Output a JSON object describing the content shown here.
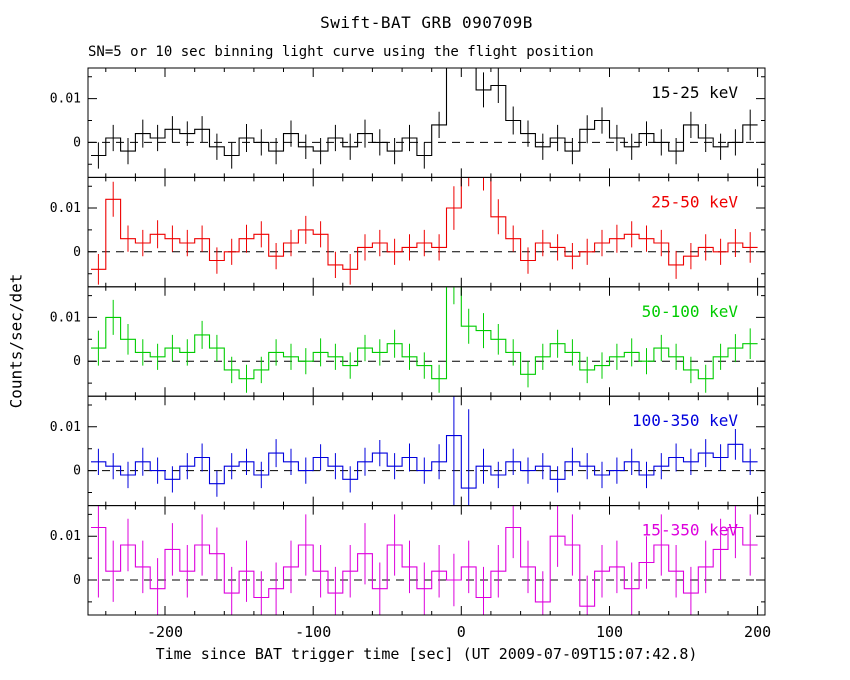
{
  "title": "Swift-BAT GRB 090709B",
  "subtitle": "SN=5 or 10 sec binning light curve using the flight position",
  "xlabel": "Time since BAT trigger time [sec] (UT 2009-07-09T15:07:42.8)",
  "ylabel": "Counts/sec/det",
  "chart_data": {
    "type": "line",
    "style": "step-histogram-with-error-bars",
    "grid": false,
    "xlim": [
      -252,
      205
    ],
    "ylim": [
      -0.008,
      0.017
    ],
    "bin_halfwidth": 5,
    "xticks": [
      {
        "v": -200,
        "label": "-200"
      },
      {
        "v": -100,
        "label": "-100"
      },
      {
        "v": 0,
        "label": "0"
      },
      {
        "v": 100,
        "label": "100"
      },
      {
        "v": 200,
        "label": "200"
      }
    ],
    "xtick_minor_step": 20,
    "yticks": [
      {
        "v": 0,
        "label": "0"
      },
      {
        "v": 0.01,
        "label": "0.01"
      }
    ],
    "ytick_minor": [
      -0.005,
      0.005,
      0.015
    ],
    "zero_line": {
      "value": 0,
      "style": "dashed",
      "color": "#000000"
    },
    "x": [
      -245,
      -235,
      -225,
      -215,
      -205,
      -195,
      -185,
      -175,
      -165,
      -155,
      -145,
      -135,
      -125,
      -115,
      -105,
      -95,
      -85,
      -75,
      -65,
      -55,
      -45,
      -35,
      -25,
      -15,
      -5,
      5,
      15,
      25,
      35,
      45,
      55,
      65,
      75,
      85,
      95,
      105,
      115,
      125,
      135,
      145,
      155,
      165,
      175,
      185,
      195
    ],
    "panels": [
      {
        "label": "15-25 keV",
        "color": "#000000",
        "y": [
          -0.003,
          0.001,
          -0.002,
          0.002,
          0.001,
          0.003,
          0.002,
          0.003,
          -0.001,
          -0.003,
          0.001,
          0.0,
          -0.002,
          0.002,
          -0.001,
          -0.002,
          0.001,
          -0.001,
          0.002,
          0.0,
          -0.002,
          0.001,
          -0.003,
          0.004,
          0.025,
          0.03,
          0.012,
          0.013,
          0.005,
          0.002,
          -0.001,
          0.001,
          -0.002,
          0.003,
          0.005,
          0.001,
          -0.001,
          0.002,
          0.0,
          -0.002,
          0.004,
          0.001,
          -0.001,
          0.0,
          0.004
        ],
        "yerr": [
          0.003,
          0.003,
          0.003,
          0.0032,
          0.003,
          0.003,
          0.0028,
          0.003,
          0.003,
          0.003,
          0.0032,
          0.003,
          0.003,
          0.003,
          0.0028,
          0.003,
          0.003,
          0.003,
          0.0032,
          0.003,
          0.003,
          0.003,
          0.003,
          0.003,
          0.006,
          0.007,
          0.004,
          0.004,
          0.0032,
          0.003,
          0.003,
          0.003,
          0.003,
          0.0032,
          0.003,
          0.003,
          0.003,
          0.0028,
          0.003,
          0.003,
          0.003,
          0.0032,
          0.003,
          0.003,
          0.0035
        ]
      },
      {
        "label": "25-50 keV",
        "color": "#ee0000",
        "y": [
          -0.004,
          0.012,
          0.003,
          0.002,
          0.004,
          0.003,
          0.002,
          0.003,
          -0.002,
          0.0,
          0.003,
          0.004,
          -0.001,
          0.002,
          0.005,
          0.004,
          -0.003,
          -0.004,
          0.001,
          0.002,
          0.0,
          0.001,
          0.002,
          0.001,
          0.01,
          0.022,
          0.02,
          0.008,
          0.003,
          -0.002,
          0.002,
          0.001,
          -0.001,
          0.0,
          0.002,
          0.003,
          0.004,
          0.003,
          0.002,
          -0.003,
          -0.001,
          0.001,
          0.0,
          0.002,
          0.001
        ],
        "yerr": [
          0.0035,
          0.004,
          0.003,
          0.003,
          0.0032,
          0.003,
          0.003,
          0.003,
          0.003,
          0.003,
          0.0032,
          0.003,
          0.003,
          0.003,
          0.0032,
          0.003,
          0.003,
          0.0035,
          0.003,
          0.003,
          0.003,
          0.003,
          0.003,
          0.003,
          0.005,
          0.007,
          0.006,
          0.004,
          0.003,
          0.003,
          0.003,
          0.003,
          0.003,
          0.003,
          0.003,
          0.0032,
          0.003,
          0.003,
          0.003,
          0.0032,
          0.003,
          0.003,
          0.003,
          0.0032,
          0.0035
        ]
      },
      {
        "label": "50-100 keV",
        "color": "#00cc00",
        "y": [
          0.003,
          0.01,
          0.005,
          0.002,
          0.001,
          0.003,
          0.002,
          0.006,
          0.003,
          -0.002,
          -0.004,
          -0.002,
          0.002,
          0.001,
          0.0,
          0.002,
          0.001,
          -0.001,
          0.003,
          0.002,
          0.004,
          0.001,
          -0.001,
          -0.004,
          0.022,
          0.008,
          0.007,
          0.005,
          0.002,
          -0.003,
          0.001,
          0.004,
          0.002,
          -0.002,
          -0.001,
          0.001,
          0.002,
          0.0,
          0.003,
          0.001,
          -0.002,
          -0.004,
          0.001,
          0.003,
          0.004
        ],
        "yerr": [
          0.004,
          0.004,
          0.0035,
          0.003,
          0.003,
          0.003,
          0.003,
          0.0032,
          0.003,
          0.003,
          0.0032,
          0.003,
          0.003,
          0.003,
          0.003,
          0.0032,
          0.003,
          0.003,
          0.003,
          0.003,
          0.0032,
          0.003,
          0.003,
          0.0032,
          0.009,
          0.004,
          0.004,
          0.0035,
          0.003,
          0.003,
          0.003,
          0.0032,
          0.003,
          0.003,
          0.003,
          0.003,
          0.0032,
          0.003,
          0.003,
          0.003,
          0.003,
          0.0032,
          0.003,
          0.0032,
          0.0035
        ]
      },
      {
        "label": "100-350 keV",
        "color": "#0000dd",
        "y": [
          0.002,
          0.001,
          -0.001,
          0.002,
          0.0,
          -0.002,
          0.001,
          0.003,
          -0.003,
          0.001,
          0.002,
          -0.001,
          0.004,
          0.002,
          0.0,
          0.003,
          0.001,
          -0.002,
          0.002,
          0.004,
          0.001,
          0.003,
          0.0,
          0.002,
          0.008,
          -0.004,
          0.001,
          -0.001,
          0.002,
          0.0,
          0.001,
          -0.002,
          0.002,
          0.001,
          -0.001,
          0.0,
          0.002,
          -0.001,
          0.001,
          0.003,
          0.002,
          0.004,
          0.003,
          0.006,
          0.002
        ],
        "yerr": [
          0.003,
          0.003,
          0.003,
          0.0032,
          0.003,
          0.003,
          0.003,
          0.0032,
          0.003,
          0.003,
          0.003,
          0.003,
          0.0032,
          0.003,
          0.003,
          0.003,
          0.003,
          0.003,
          0.0032,
          0.003,
          0.003,
          0.0032,
          0.003,
          0.004,
          0.02,
          0.018,
          0.004,
          0.003,
          0.003,
          0.003,
          0.003,
          0.003,
          0.0032,
          0.003,
          0.003,
          0.003,
          0.003,
          0.003,
          0.003,
          0.0032,
          0.003,
          0.0032,
          0.003,
          0.0035,
          0.003
        ]
      },
      {
        "label": "15-350 keV",
        "color": "#dd00dd",
        "y": [
          0.012,
          0.002,
          0.008,
          0.003,
          -0.002,
          0.007,
          0.002,
          0.008,
          0.006,
          -0.003,
          0.002,
          -0.004,
          -0.002,
          0.003,
          0.008,
          0.002,
          -0.003,
          0.002,
          0.006,
          -0.002,
          0.008,
          0.003,
          -0.002,
          0.002,
          0.0,
          0.003,
          -0.004,
          0.002,
          0.012,
          0.003,
          -0.005,
          0.01,
          0.008,
          -0.006,
          0.002,
          0.003,
          -0.002,
          0.004,
          0.008,
          0.002,
          -0.003,
          0.003,
          0.007,
          0.012,
          0.008
        ],
        "yerr": [
          0.016,
          0.007,
          0.006,
          0.006,
          0.007,
          0.006,
          0.006,
          0.007,
          0.006,
          0.006,
          0.007,
          0.006,
          0.006,
          0.006,
          0.007,
          0.006,
          0.006,
          0.006,
          0.007,
          0.006,
          0.007,
          0.006,
          0.006,
          0.006,
          0.006,
          0.006,
          0.007,
          0.006,
          0.007,
          0.006,
          0.007,
          0.007,
          0.007,
          0.007,
          0.006,
          0.006,
          0.006,
          0.006,
          0.007,
          0.006,
          0.006,
          0.006,
          0.007,
          0.007,
          0.007
        ]
      }
    ]
  }
}
